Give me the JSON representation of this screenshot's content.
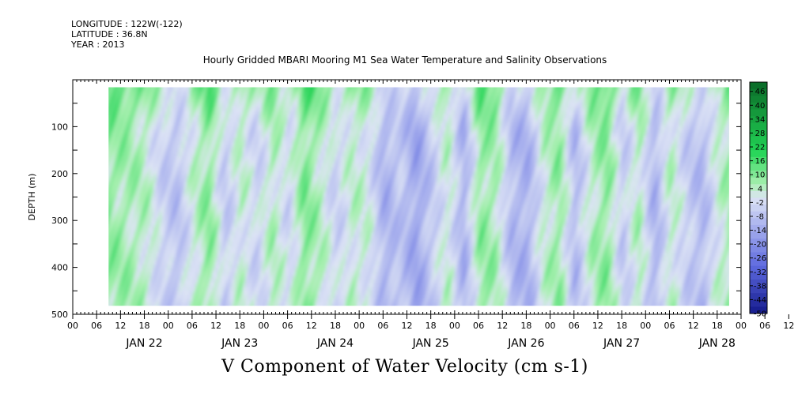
{
  "header": {
    "longitude": "LONGITUDE : 122W(-122)",
    "latitude": "LATITUDE : 36.8N",
    "year": "YEAR : 2013",
    "plot_title": "Hourly Gridded MBARI Mooring M1 Sea Water Temperature and Salinity Observations",
    "bottom_title": "V Component of Water Velocity (cm s-1)"
  },
  "chart_data": {
    "type": "heatmap",
    "title": "Hourly Gridded MBARI Mooring M1 Sea Water Temperature and Salinity Observations",
    "variable": "V Component of Water Velocity (cm s-1)",
    "ylabel": "DEPTH (m)",
    "ylim": [
      500,
      0
    ],
    "y_tick_labels": [
      "100",
      "200",
      "300",
      "400",
      "500"
    ],
    "x_hour_ticks": [
      "00",
      "06",
      "12",
      "18",
      "00",
      "06",
      "12",
      "18",
      "00",
      "06",
      "12",
      "18",
      "00",
      "06",
      "12",
      "18",
      "00",
      "06",
      "12",
      "18",
      "00",
      "06",
      "12",
      "18",
      "00",
      "06",
      "12",
      "18",
      "00",
      "06",
      "12",
      "18"
    ],
    "x_day_labels": [
      "JAN 22",
      "JAN 23",
      "JAN 24",
      "JAN 25",
      "JAN 26",
      "JAN 27",
      "JAN 28"
    ],
    "x_range_hours": [
      -6,
      162
    ],
    "data_x_range_hours": [
      3,
      159
    ],
    "data_depth_range": [
      16,
      482
    ],
    "colorbar_labels": [
      "46",
      "40",
      "34",
      "28",
      "22",
      "16",
      "10",
      "4",
      "-2",
      "-8",
      "-14",
      "-20",
      "-26",
      "-32",
      "-38",
      "-44",
      "-50"
    ],
    "colorbar_range": [
      -50,
      50
    ],
    "colors": {
      "strong_positive": "#0a6a28",
      "positive": "#22d455",
      "weak_positive": "#a8f0b0",
      "neutral": "#dde4f5",
      "weak_negative": "#aab2ee",
      "negative": "#5c68de",
      "strong_negative": "#141a8c"
    },
    "time_profile": [
      {
        "hour": 3,
        "v": 8
      },
      {
        "hour": 8,
        "v": 6
      },
      {
        "hour": 12,
        "v": 4
      },
      {
        "hour": 16,
        "v": -4
      },
      {
        "hour": 20,
        "v": -8
      },
      {
        "hour": 24,
        "v": 2
      },
      {
        "hour": 28,
        "v": 9
      },
      {
        "hour": 32,
        "v": -6
      },
      {
        "hour": 36,
        "v": 3
      },
      {
        "hour": 40,
        "v": -4
      },
      {
        "hour": 44,
        "v": 5
      },
      {
        "hour": 48,
        "v": -3
      },
      {
        "hour": 52,
        "v": 10
      },
      {
        "hour": 56,
        "v": 4
      },
      {
        "hour": 60,
        "v": -4
      },
      {
        "hour": 64,
        "v": 3
      },
      {
        "hour": 68,
        "v": 1
      },
      {
        "hour": 72,
        "v": -12
      },
      {
        "hour": 76,
        "v": -7
      },
      {
        "hour": 80,
        "v": -15
      },
      {
        "hour": 84,
        "v": -6
      },
      {
        "hour": 88,
        "v": 3
      },
      {
        "hour": 92,
        "v": -12
      },
      {
        "hour": 96,
        "v": 8
      },
      {
        "hour": 100,
        "v": 6
      },
      {
        "hour": 104,
        "v": -10
      },
      {
        "hour": 108,
        "v": -12
      },
      {
        "hour": 112,
        "v": 2
      },
      {
        "hour": 116,
        "v": 8
      },
      {
        "hour": 120,
        "v": -10
      },
      {
        "hour": 124,
        "v": 4
      },
      {
        "hour": 128,
        "v": 9
      },
      {
        "hour": 132,
        "v": -6
      },
      {
        "hour": 136,
        "v": 5
      },
      {
        "hour": 140,
        "v": -12
      },
      {
        "hour": 144,
        "v": 4
      },
      {
        "hour": 148,
        "v": -5
      },
      {
        "hour": 152,
        "v": -10
      },
      {
        "hour": 156,
        "v": 2
      },
      {
        "hour": 159,
        "v": 6
      }
    ]
  }
}
